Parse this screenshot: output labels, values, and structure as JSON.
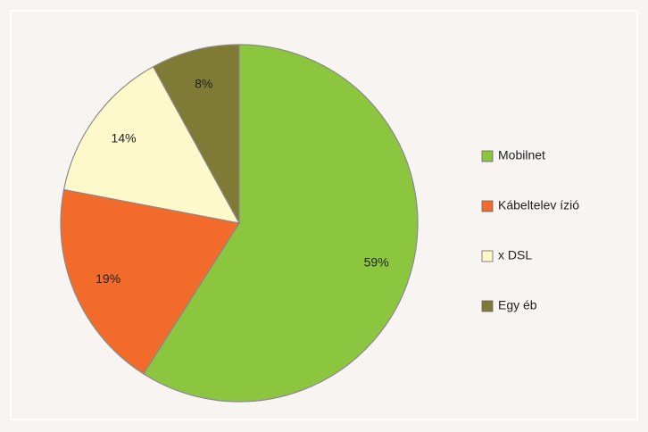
{
  "chart_data": {
    "type": "pie",
    "categories": [
      "Mobilnet",
      "Kábeltelev ízió",
      "x DSL",
      "Egy éb"
    ],
    "values": [
      59,
      19,
      14,
      8
    ],
    "value_labels": [
      "59%",
      "19%",
      "14%",
      "8%"
    ],
    "colors": [
      "#8cc63f",
      "#f26b2b",
      "#fdf9cb",
      "#7f7a35"
    ],
    "legend": "right"
  }
}
